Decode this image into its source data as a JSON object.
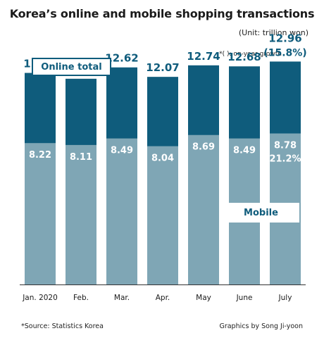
{
  "title": "Korea’s online and mobile shopping transactions",
  "unit": "(Unit: trillion won)",
  "note": "*( ): on-year growth",
  "source": "*Source: Statistics Korea",
  "credit": "Graphics by Song Ji-yoon",
  "colors": {
    "online": "#0f5c7c",
    "mobile": "#7fa6b5",
    "label_online": "#0f5c7c",
    "label_mobile": "#ffffff"
  },
  "chart_data": {
    "type": "bar",
    "categories": [
      "Jan. 2020",
      "Feb.",
      "Mar.",
      "Apr.",
      "May",
      "June",
      "July"
    ],
    "series": [
      {
        "name": "Online total",
        "values": [
          12.3,
          11.96,
          12.62,
          12.07,
          12.74,
          12.68,
          12.96
        ],
        "labels": [
          "12.30",
          "11.96",
          "12.62",
          "12.07",
          "12.74",
          "12.68",
          "12.96"
        ]
      },
      {
        "name": "Mobile",
        "values": [
          8.22,
          8.11,
          8.49,
          8.04,
          8.69,
          8.49,
          8.78
        ],
        "labels": [
          "8.22",
          "8.11",
          "8.49",
          "8.04",
          "8.69",
          "8.49",
          "8.78"
        ]
      }
    ],
    "annotations": [
      {
        "category": "July",
        "series": "Online total",
        "text": "(15.8%)"
      },
      {
        "category": "July",
        "series": "Mobile",
        "text": "(21.2%)"
      }
    ],
    "ylim": [
      0,
      14
    ],
    "legend": [
      "Online total",
      "Mobile"
    ]
  }
}
